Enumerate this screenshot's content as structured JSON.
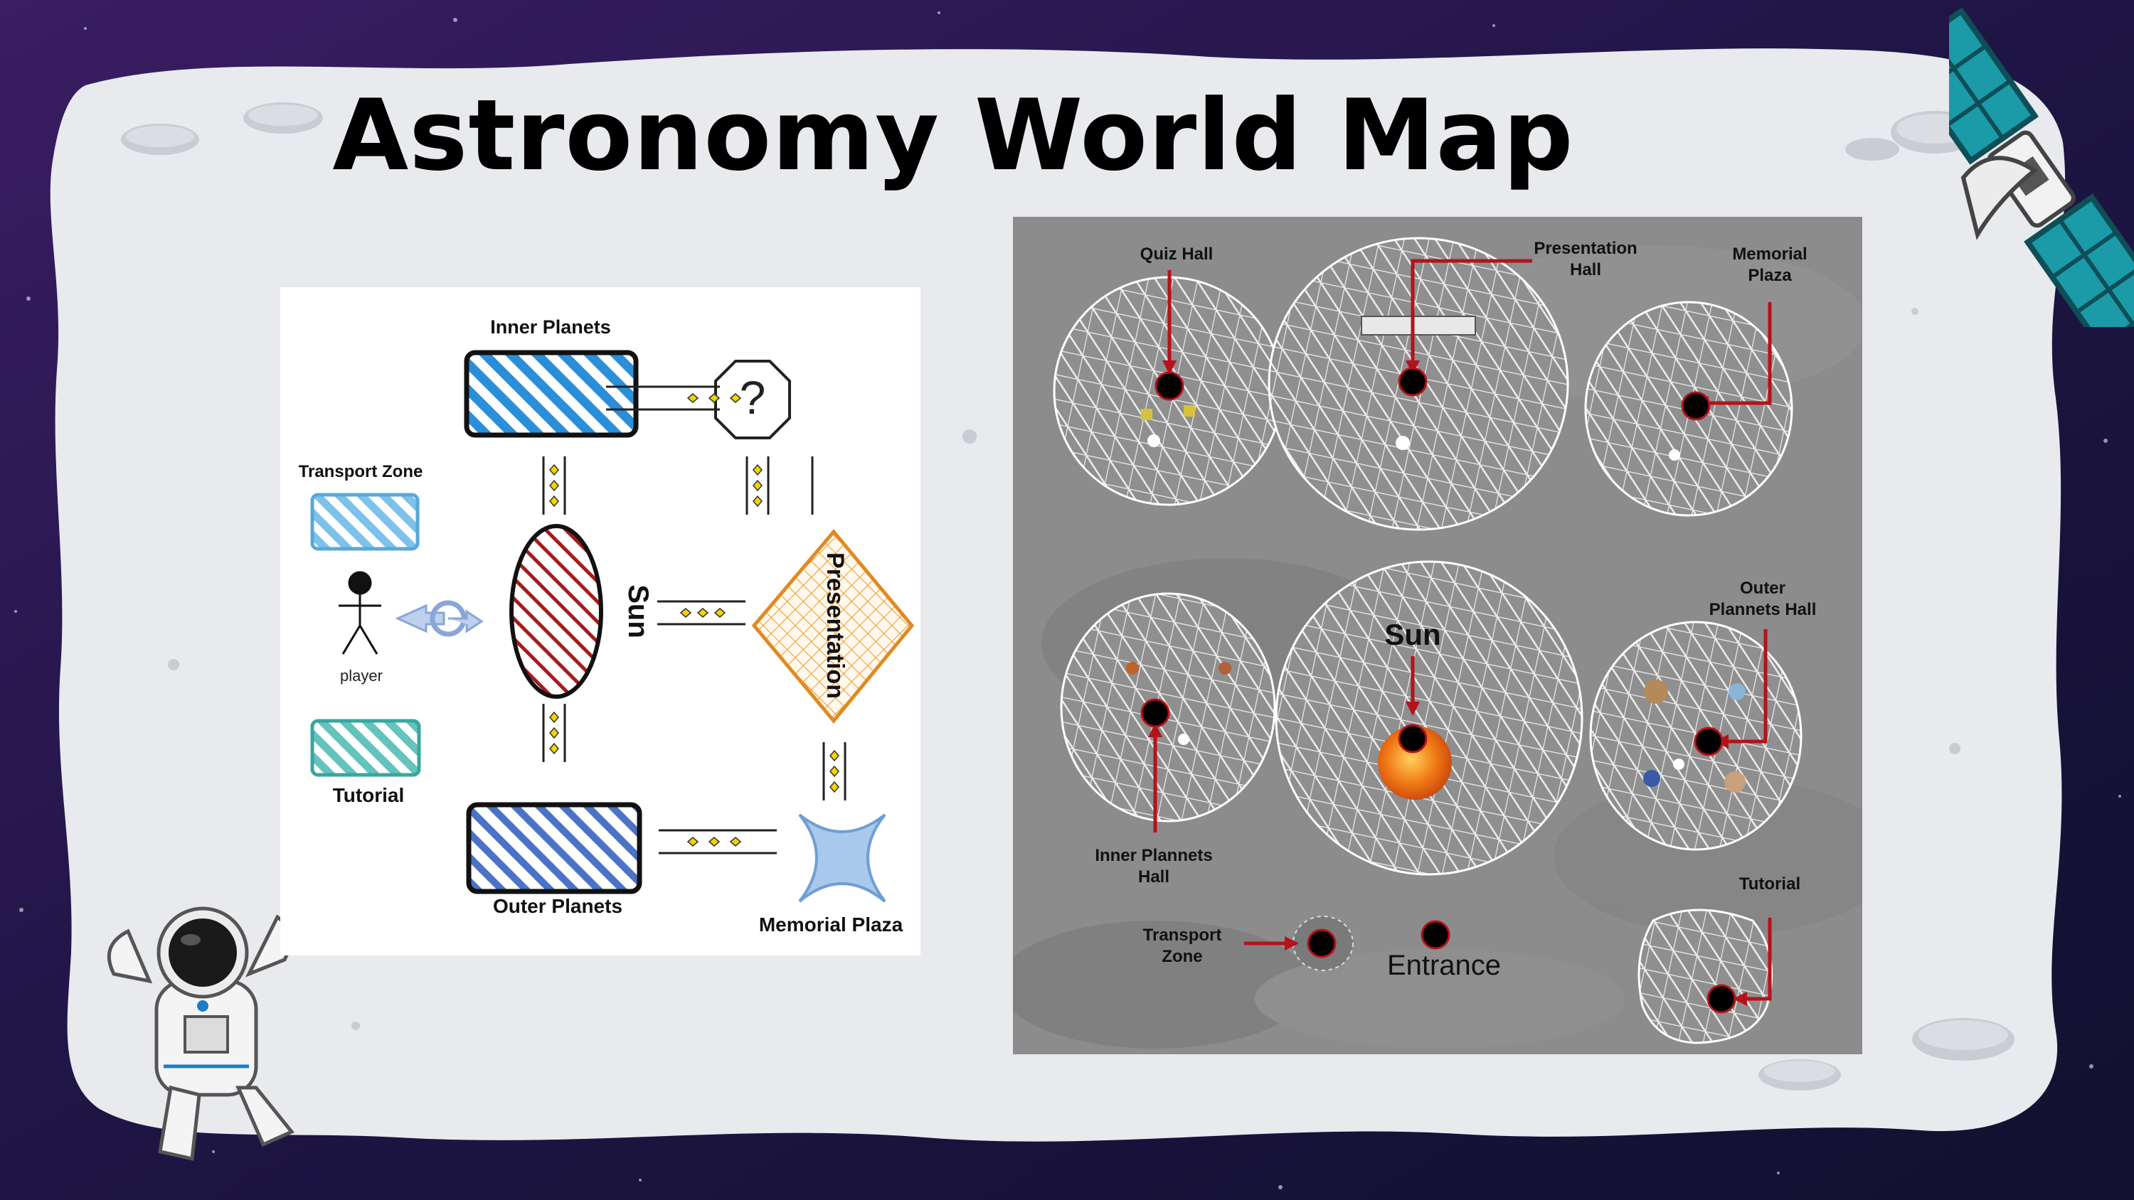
{
  "slide": {
    "title": "Astronomy World Map"
  },
  "flow_diagram": {
    "nodes": {
      "inner_planets": "Inner Planets",
      "transport_zone": "Transport Zone",
      "player": "player",
      "tutorial": "Tutorial",
      "sun": "Sun",
      "presentation": "Presentation",
      "outer_planets": "Outer Planets",
      "memorial_plaza": "Memorial Plaza",
      "quiz_symbol": "?"
    }
  },
  "aerial_map": {
    "labels": {
      "quiz_hall": "Quiz Hall",
      "presentation_hall": [
        "Presentation",
        "Hall"
      ],
      "memorial_plaza": [
        "Memorial",
        "Plaza"
      ],
      "sun": "Sun",
      "outer_planets_hall": [
        "Outer",
        "Plannets Hall"
      ],
      "inner_planets_hall": [
        "Inner Plannets",
        "Hall"
      ],
      "transport_zone": [
        "Transport",
        "Zone"
      ],
      "entrance": "Entrance",
      "tutorial": "Tutorial"
    }
  },
  "colors": {
    "space_background": "#1d1340",
    "moon_surface": "#e8eaee",
    "marker_arrow": "#b5121b",
    "inner_planets_fill": "#2a8fd8",
    "sun_fill": "#a51c1c",
    "presentation_fill": "#e69a3a",
    "outer_planets_fill": "#4a73c8",
    "memorial_plaza_fill": "#a9c9ec"
  },
  "icons": [
    "satellite-icon",
    "astronaut-icon",
    "crater-icon",
    "player-stick-figure-icon",
    "teleport-arrow-icon",
    "question-octagon-icon"
  ]
}
